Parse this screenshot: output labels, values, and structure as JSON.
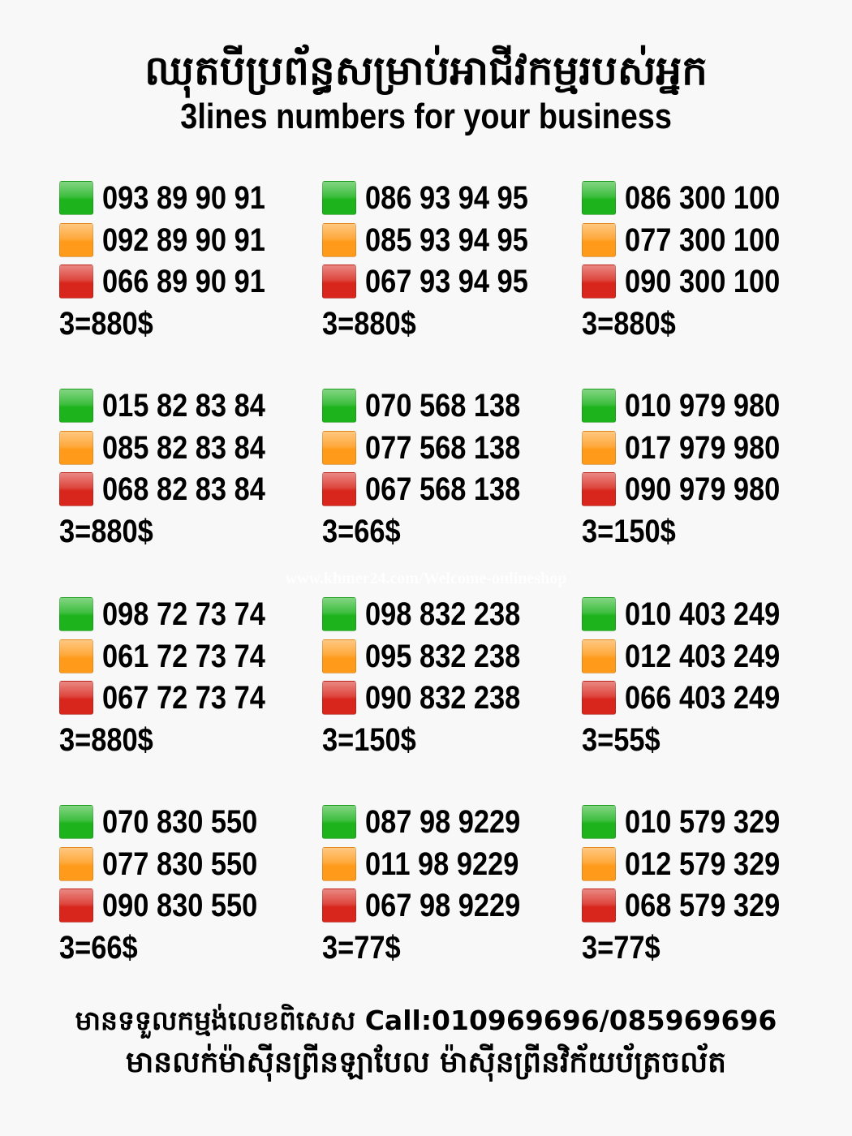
{
  "header": {
    "title_kh": "ឈុតបីប្រព័ន្ធសម្រាប់អាជីវកម្មរបស់អ្នក",
    "title_en": "3lines numbers for your business"
  },
  "colors": {
    "green": "#1db31d",
    "orange": "#ff9a1a",
    "red": "#d8261c"
  },
  "icons": [
    "green-square-icon",
    "orange-square-icon",
    "red-square-icon"
  ],
  "groups": [
    {
      "numbers": [
        "093 89 90 91",
        "092 89 90 91",
        "066 89 90 91"
      ],
      "price": "3=880$"
    },
    {
      "numbers": [
        "086 93 94 95",
        "085 93 94 95",
        "067 93 94 95"
      ],
      "price": "3=880$"
    },
    {
      "numbers": [
        "086 300 100",
        "077 300 100",
        "090 300 100"
      ],
      "price": "3=880$"
    },
    {
      "numbers": [
        "015 82 83 84",
        "085 82 83 84",
        "068 82 83 84"
      ],
      "price": "3=880$"
    },
    {
      "numbers": [
        "070 568 138",
        "077 568 138",
        "067 568 138"
      ],
      "price": "3=66$"
    },
    {
      "numbers": [
        "010 979 980",
        "017 979 980",
        "090 979 980"
      ],
      "price": "3=150$"
    },
    {
      "numbers": [
        "098 72 73 74",
        "061 72 73 74",
        "067 72 73 74"
      ],
      "price": "3=880$"
    },
    {
      "numbers": [
        "098 832 238",
        "095 832 238",
        "090 832 238"
      ],
      "price": "3=150$"
    },
    {
      "numbers": [
        "010 403 249",
        "012 403 249",
        "066 403 249"
      ],
      "price": "3=55$"
    },
    {
      "numbers": [
        "070 830 550",
        "077 830 550",
        "090 830 550"
      ],
      "price": "3=66$"
    },
    {
      "numbers": [
        "087 98 9229",
        "011 98 9229",
        "067 98 9229"
      ],
      "price": "3=77$"
    },
    {
      "numbers": [
        "010 579 329",
        "012 579 329",
        "068 579 329"
      ],
      "price": "3=77$"
    }
  ],
  "watermark": "www.khmer24.com/Welcome-onlineshop",
  "footer": {
    "line1": "មានទទួលកម្មង់លេខពិសេស Call:010969696/085969696",
    "line2": "មានលក់ម៉ាស៊ីនព្រីនឡាបែល ម៉ាស៊ីនព្រីនវិក័យប័ត្រចល័ត"
  }
}
